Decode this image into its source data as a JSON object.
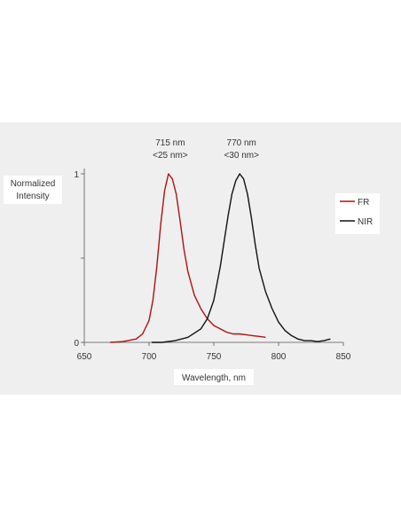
{
  "chart_data": {
    "type": "line",
    "title": "",
    "xlabel": "Wavelength, nm",
    "ylabel": "Normalized Intensity",
    "ylabel_lines": [
      "Normalized",
      "Intensity"
    ],
    "xlim": [
      650,
      850
    ],
    "ylim": [
      0,
      1
    ],
    "x_ticks": [
      650,
      700,
      750,
      800,
      850
    ],
    "y_ticks": [
      0,
      0.5,
      1
    ],
    "y_tick_labels": [
      "0",
      "",
      "1"
    ],
    "grid": false,
    "legend_position": "right",
    "annotations": [
      {
        "x": 715,
        "lines": [
          "715 nm",
          "<25 nm>"
        ]
      },
      {
        "x": 770,
        "lines": [
          "770 nm",
          "<30 nm>"
        ]
      }
    ],
    "series": [
      {
        "name": "FR",
        "color": "#b01010",
        "x": [
          670,
          680,
          690,
          695,
          700,
          703,
          706,
          709,
          712,
          715,
          718,
          721,
          724,
          727,
          730,
          735,
          740,
          745,
          750,
          755,
          760,
          765,
          770,
          775,
          780,
          785,
          790
        ],
        "y": [
          0.0,
          0.005,
          0.02,
          0.05,
          0.13,
          0.25,
          0.45,
          0.7,
          0.9,
          1.0,
          0.97,
          0.88,
          0.72,
          0.55,
          0.42,
          0.28,
          0.2,
          0.14,
          0.1,
          0.08,
          0.06,
          0.05,
          0.05,
          0.045,
          0.04,
          0.035,
          0.03
        ]
      },
      {
        "name": "NIR",
        "color": "#111111",
        "x": [
          702,
          710,
          720,
          730,
          740,
          745,
          750,
          755,
          758,
          761,
          764,
          767,
          770,
          773,
          776,
          779,
          782,
          785,
          790,
          795,
          800,
          805,
          810,
          815,
          820,
          825,
          830,
          835,
          840
        ],
        "y": [
          0.0,
          0.0,
          0.01,
          0.03,
          0.08,
          0.14,
          0.25,
          0.45,
          0.6,
          0.75,
          0.88,
          0.96,
          1.0,
          0.97,
          0.88,
          0.74,
          0.58,
          0.44,
          0.3,
          0.2,
          0.12,
          0.07,
          0.04,
          0.02,
          0.01,
          0.01,
          0.005,
          0.01,
          0.02
        ]
      }
    ]
  }
}
